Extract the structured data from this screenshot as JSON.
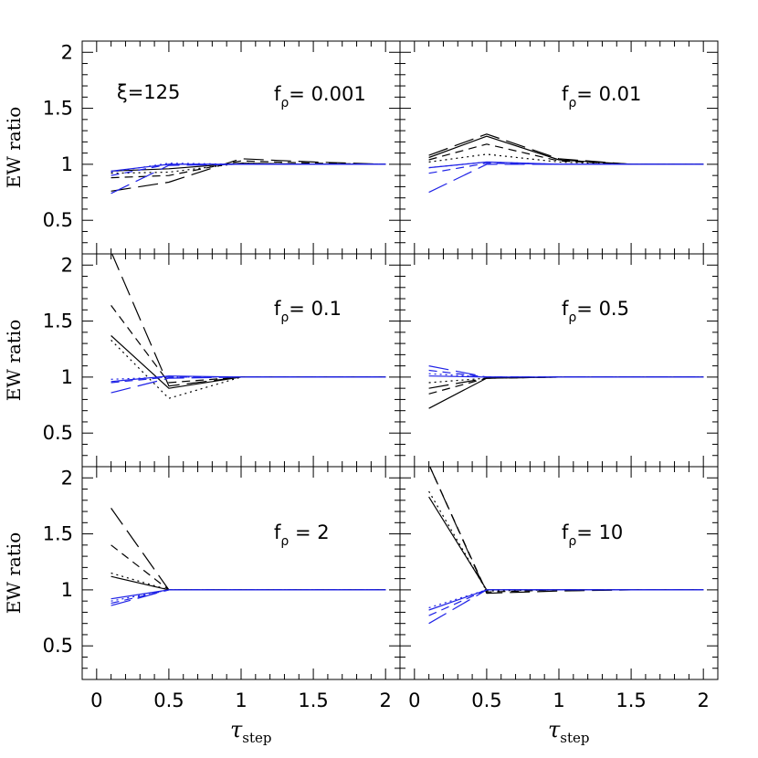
{
  "figure": {
    "y_axis_label": "EW ratio",
    "x_axis_label_main": "τ",
    "x_axis_label_sub": "step",
    "x_ticks": [
      0,
      0.5,
      1,
      1.5,
      2
    ],
    "x_tick_labels": [
      "0",
      "0.5",
      "1",
      "1.5",
      "2"
    ],
    "y_ticks": [
      0.5,
      1,
      1.5,
      2
    ],
    "y_tick_labels": [
      "0.5",
      "1",
      "1.5",
      "2"
    ],
    "annotation": "ξ=125",
    "colors": {
      "black": "#000000",
      "blue": "#1f22e6"
    },
    "line_styles": [
      "solid",
      "dotted",
      "short-dash",
      "long-dash"
    ]
  },
  "chart_data": [
    {
      "type": "line",
      "panel_label": "f_ρ= 0.001",
      "xlim": [
        -0.1,
        2.1
      ],
      "ylim": [
        0.2,
        2.1
      ],
      "grid": false,
      "x": [
        0.1,
        0.5,
        1,
        1.5,
        2
      ],
      "series": [
        {
          "color": "black",
          "dash": "solid",
          "values": [
            0.94,
            0.96,
            1.01,
            1.0,
            1.0
          ]
        },
        {
          "color": "black",
          "dash": "dotted",
          "values": [
            0.92,
            0.93,
            1.01,
            1.0,
            1.0
          ]
        },
        {
          "color": "black",
          "dash": "short-dash",
          "values": [
            0.88,
            0.9,
            1.03,
            1.01,
            1.0
          ]
        },
        {
          "color": "black",
          "dash": "long-dash",
          "values": [
            0.76,
            0.84,
            1.05,
            1.02,
            1.0
          ]
        },
        {
          "color": "blue",
          "dash": "solid",
          "values": [
            0.94,
            1.0,
            1.0,
            1.0,
            1.0
          ]
        },
        {
          "color": "blue",
          "dash": "dotted",
          "values": [
            0.93,
            1.01,
            1.0,
            1.0,
            1.0
          ]
        },
        {
          "color": "blue",
          "dash": "short-dash",
          "values": [
            0.9,
            1.0,
            1.0,
            1.0,
            1.0
          ]
        },
        {
          "color": "blue",
          "dash": "long-dash",
          "values": [
            0.74,
            0.99,
            1.0,
            1.0,
            1.0
          ]
        }
      ]
    },
    {
      "type": "line",
      "panel_label": "f_ρ= 0.01",
      "xlim": [
        -0.1,
        2.1
      ],
      "ylim": [
        0.2,
        2.1
      ],
      "grid": false,
      "x": [
        0.1,
        0.5,
        1,
        1.5,
        2
      ],
      "series": [
        {
          "color": "black",
          "dash": "solid",
          "values": [
            1.06,
            1.25,
            1.04,
            1.0,
            1.0
          ]
        },
        {
          "color": "black",
          "dash": "dotted",
          "values": [
            1.02,
            1.09,
            1.02,
            1.0,
            1.0
          ]
        },
        {
          "color": "black",
          "dash": "short-dash",
          "values": [
            1.04,
            1.18,
            1.03,
            1.0,
            1.0
          ]
        },
        {
          "color": "black",
          "dash": "long-dash",
          "values": [
            1.08,
            1.27,
            1.05,
            1.0,
            1.0
          ]
        },
        {
          "color": "blue",
          "dash": "solid",
          "values": [
            0.97,
            1.02,
            1.0,
            1.0,
            1.0
          ]
        },
        {
          "color": "blue",
          "dash": "dotted",
          "values": [
            0.97,
            1.02,
            1.0,
            1.0,
            1.0
          ]
        },
        {
          "color": "blue",
          "dash": "short-dash",
          "values": [
            0.92,
            1.01,
            1.0,
            1.0,
            1.0
          ]
        },
        {
          "color": "blue",
          "dash": "long-dash",
          "values": [
            0.75,
            1.0,
            1.0,
            1.0,
            1.0
          ]
        }
      ]
    },
    {
      "type": "line",
      "panel_label": "f_ρ= 0.1",
      "xlim": [
        -0.1,
        2.1
      ],
      "ylim": [
        0.2,
        2.1
      ],
      "grid": false,
      "x": [
        0.1,
        0.5,
        1,
        1.5,
        2
      ],
      "series": [
        {
          "color": "black",
          "dash": "solid",
          "values": [
            1.37,
            0.9,
            1.0,
            1.0,
            1.0
          ]
        },
        {
          "color": "black",
          "dash": "dotted",
          "values": [
            1.33,
            0.81,
            1.0,
            1.0,
            1.0
          ]
        },
        {
          "color": "black",
          "dash": "short-dash",
          "values": [
            1.64,
            0.95,
            1.0,
            1.0,
            1.0
          ]
        },
        {
          "color": "black",
          "dash": "long-dash",
          "values": [
            2.12,
            0.92,
            1.0,
            1.0,
            1.0
          ]
        },
        {
          "color": "blue",
          "dash": "solid",
          "values": [
            0.96,
            1.01,
            1.0,
            1.0,
            1.0
          ]
        },
        {
          "color": "blue",
          "dash": "dotted",
          "values": [
            0.98,
            1.0,
            1.0,
            1.0,
            1.0
          ]
        },
        {
          "color": "blue",
          "dash": "short-dash",
          "values": [
            0.95,
            1.0,
            1.0,
            1.0,
            1.0
          ]
        },
        {
          "color": "blue",
          "dash": "long-dash",
          "values": [
            0.86,
            0.99,
            1.0,
            1.0,
            1.0
          ]
        }
      ]
    },
    {
      "type": "line",
      "panel_label": "f_ρ= 0.5",
      "xlim": [
        -0.1,
        2.1
      ],
      "ylim": [
        0.2,
        2.1
      ],
      "grid": false,
      "x": [
        0.1,
        0.5,
        1,
        1.5,
        2
      ],
      "series": [
        {
          "color": "black",
          "dash": "solid",
          "values": [
            0.72,
            0.99,
            1.0,
            1.0,
            1.0
          ]
        },
        {
          "color": "black",
          "dash": "dotted",
          "values": [
            0.95,
            0.99,
            1.0,
            1.0,
            1.0
          ]
        },
        {
          "color": "black",
          "dash": "short-dash",
          "values": [
            0.85,
            0.99,
            1.0,
            1.0,
            1.0
          ]
        },
        {
          "color": "black",
          "dash": "long-dash",
          "values": [
            0.9,
            0.99,
            1.0,
            1.0,
            1.0
          ]
        },
        {
          "color": "blue",
          "dash": "solid",
          "values": [
            1.01,
            1.0,
            1.0,
            1.0,
            1.0
          ]
        },
        {
          "color": "blue",
          "dash": "dotted",
          "values": [
            1.03,
            1.0,
            1.0,
            1.0,
            1.0
          ]
        },
        {
          "color": "blue",
          "dash": "short-dash",
          "values": [
            1.06,
            1.0,
            1.0,
            1.0,
            1.0
          ]
        },
        {
          "color": "blue",
          "dash": "long-dash",
          "values": [
            1.1,
            1.0,
            1.0,
            1.0,
            1.0
          ]
        }
      ]
    },
    {
      "type": "line",
      "panel_label": "f_ρ = 2",
      "xlim": [
        -0.1,
        2.1
      ],
      "ylim": [
        0.2,
        2.1
      ],
      "grid": false,
      "x": [
        0.1,
        0.5,
        1,
        1.5,
        2
      ],
      "series": [
        {
          "color": "black",
          "dash": "solid",
          "values": [
            1.12,
            1.0,
            1.0,
            1.0,
            1.0
          ]
        },
        {
          "color": "black",
          "dash": "dotted",
          "values": [
            1.15,
            1.0,
            1.0,
            1.0,
            1.0
          ]
        },
        {
          "color": "black",
          "dash": "short-dash",
          "values": [
            1.4,
            1.0,
            1.0,
            1.0,
            1.0
          ]
        },
        {
          "color": "black",
          "dash": "long-dash",
          "values": [
            1.73,
            1.0,
            1.0,
            1.0,
            1.0
          ]
        },
        {
          "color": "blue",
          "dash": "solid",
          "values": [
            0.92,
            1.0,
            1.0,
            1.0,
            1.0
          ]
        },
        {
          "color": "blue",
          "dash": "dotted",
          "values": [
            0.9,
            1.0,
            1.0,
            1.0,
            1.0
          ]
        },
        {
          "color": "blue",
          "dash": "short-dash",
          "values": [
            0.88,
            1.0,
            1.0,
            1.0,
            1.0
          ]
        },
        {
          "color": "blue",
          "dash": "long-dash",
          "values": [
            0.86,
            1.0,
            1.0,
            1.0,
            1.0
          ]
        }
      ]
    },
    {
      "type": "line",
      "panel_label": "f_ρ= 10",
      "xlim": [
        -0.1,
        2.1
      ],
      "ylim": [
        0.2,
        2.1
      ],
      "grid": false,
      "x": [
        0.1,
        0.5,
        1,
        1.5,
        2
      ],
      "series": [
        {
          "color": "black",
          "dash": "solid",
          "values": [
            1.83,
            1.0,
            1.0,
            1.0,
            1.0
          ]
        },
        {
          "color": "black",
          "dash": "dotted",
          "values": [
            1.88,
            0.99,
            1.0,
            1.0,
            1.0
          ]
        },
        {
          "color": "black",
          "dash": "short-dash",
          "values": [
            2.12,
            0.98,
            1.0,
            1.0,
            1.0
          ]
        },
        {
          "color": "black",
          "dash": "long-dash",
          "values": [
            2.12,
            0.97,
            0.99,
            1.0,
            1.0
          ]
        },
        {
          "color": "blue",
          "dash": "solid",
          "values": [
            0.82,
            1.0,
            1.0,
            1.0,
            1.0
          ]
        },
        {
          "color": "blue",
          "dash": "dotted",
          "values": [
            0.84,
            1.0,
            1.0,
            1.0,
            1.0
          ]
        },
        {
          "color": "blue",
          "dash": "short-dash",
          "values": [
            0.77,
            1.0,
            1.0,
            1.0,
            1.0
          ]
        },
        {
          "color": "blue",
          "dash": "long-dash",
          "values": [
            0.7,
            1.0,
            1.0,
            1.0,
            1.0
          ]
        }
      ]
    }
  ]
}
